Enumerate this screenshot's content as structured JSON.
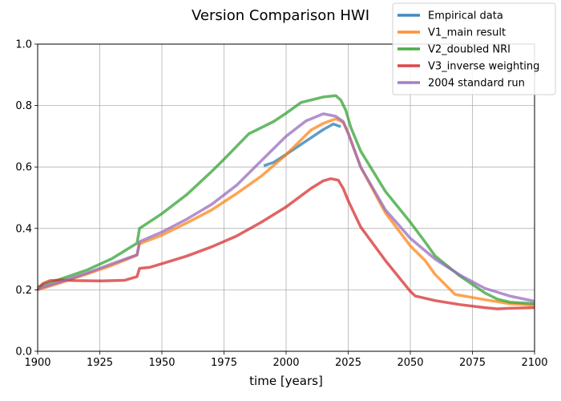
{
  "chart_data": {
    "type": "line",
    "title": "Version Comparison HWI",
    "xlabel": "time [years]",
    "ylabel": "",
    "xlim": [
      1900,
      2100
    ],
    "ylim": [
      0,
      1.0
    ],
    "xticks": [
      1900,
      1925,
      1950,
      1975,
      2000,
      2025,
      2050,
      2075,
      2100
    ],
    "yticks": [
      0.0,
      0.2,
      0.4,
      0.6,
      0.8,
      1.0
    ],
    "xtick_labels": [
      "1900",
      "1925",
      "1950",
      "1975",
      "2000",
      "2025",
      "2050",
      "2075",
      "2100"
    ],
    "ytick_labels": [
      "0.0",
      "0.2",
      "0.4",
      "0.6",
      "0.8",
      "1.0"
    ],
    "grid": true,
    "legend_position": "top-right",
    "series": [
      {
        "name": "Empirical data",
        "color": "#1f77b4",
        "points": [
          [
            1991,
            0.604
          ],
          [
            1995,
            0.615
          ],
          [
            2000,
            0.641
          ],
          [
            2005,
            0.668
          ],
          [
            2010,
            0.695
          ],
          [
            2015,
            0.722
          ],
          [
            2019,
            0.74
          ],
          [
            2022,
            0.731
          ]
        ]
      },
      {
        "name": "V1_main result",
        "color": "#ff7f0e",
        "points": [
          [
            1900,
            0.2
          ],
          [
            1910,
            0.225
          ],
          [
            1920,
            0.252
          ],
          [
            1930,
            0.28
          ],
          [
            1940,
            0.313
          ],
          [
            1941,
            0.35
          ],
          [
            1950,
            0.378
          ],
          [
            1960,
            0.418
          ],
          [
            1970,
            0.46
          ],
          [
            1980,
            0.513
          ],
          [
            1990,
            0.57
          ],
          [
            2000,
            0.64
          ],
          [
            2010,
            0.72
          ],
          [
            2015,
            0.742
          ],
          [
            2020,
            0.757
          ],
          [
            2023,
            0.745
          ],
          [
            2025,
            0.71
          ],
          [
            2030,
            0.6
          ],
          [
            2040,
            0.45
          ],
          [
            2050,
            0.343
          ],
          [
            2056,
            0.295
          ],
          [
            2060,
            0.25
          ],
          [
            2068,
            0.185
          ],
          [
            2080,
            0.168
          ],
          [
            2090,
            0.155
          ],
          [
            2100,
            0.15
          ]
        ]
      },
      {
        "name": "V2_doubled NRI",
        "color": "#2ca02c",
        "points": [
          [
            1900,
            0.21
          ],
          [
            1910,
            0.237
          ],
          [
            1920,
            0.265
          ],
          [
            1930,
            0.302
          ],
          [
            1940,
            0.352
          ],
          [
            1941,
            0.4
          ],
          [
            1950,
            0.448
          ],
          [
            1960,
            0.51
          ],
          [
            1970,
            0.585
          ],
          [
            1975,
            0.625
          ],
          [
            1985,
            0.708
          ],
          [
            1995,
            0.748
          ],
          [
            2000,
            0.775
          ],
          [
            2006,
            0.81
          ],
          [
            2015,
            0.828
          ],
          [
            2020,
            0.832
          ],
          [
            2022,
            0.818
          ],
          [
            2024,
            0.785
          ],
          [
            2026,
            0.73
          ],
          [
            2030,
            0.652
          ],
          [
            2040,
            0.52
          ],
          [
            2050,
            0.42
          ],
          [
            2056,
            0.355
          ],
          [
            2060,
            0.31
          ],
          [
            2070,
            0.245
          ],
          [
            2080,
            0.19
          ],
          [
            2085,
            0.17
          ],
          [
            2090,
            0.16
          ],
          [
            2100,
            0.155
          ]
        ]
      },
      {
        "name": "V3_inverse weighting",
        "color": "#d62728",
        "points": [
          [
            1900,
            0.2
          ],
          [
            1902,
            0.22
          ],
          [
            1905,
            0.23
          ],
          [
            1910,
            0.232
          ],
          [
            1915,
            0.23
          ],
          [
            1925,
            0.229
          ],
          [
            1935,
            0.231
          ],
          [
            1940,
            0.243
          ],
          [
            1941,
            0.27
          ],
          [
            1945,
            0.273
          ],
          [
            1950,
            0.285
          ],
          [
            1960,
            0.31
          ],
          [
            1970,
            0.34
          ],
          [
            1980,
            0.375
          ],
          [
            1990,
            0.42
          ],
          [
            2000,
            0.47
          ],
          [
            2010,
            0.53
          ],
          [
            2015,
            0.555
          ],
          [
            2018,
            0.562
          ],
          [
            2021,
            0.557
          ],
          [
            2023,
            0.53
          ],
          [
            2025,
            0.49
          ],
          [
            2030,
            0.405
          ],
          [
            2040,
            0.295
          ],
          [
            2045,
            0.245
          ],
          [
            2050,
            0.195
          ],
          [
            2052,
            0.18
          ],
          [
            2060,
            0.165
          ],
          [
            2070,
            0.152
          ],
          [
            2080,
            0.142
          ],
          [
            2085,
            0.138
          ],
          [
            2090,
            0.14
          ],
          [
            2100,
            0.142
          ]
        ]
      },
      {
        "name": "2004 standard run",
        "color": "#9467bd",
        "points": [
          [
            1900,
            0.203
          ],
          [
            1910,
            0.228
          ],
          [
            1920,
            0.255
          ],
          [
            1930,
            0.285
          ],
          [
            1940,
            0.314
          ],
          [
            1941,
            0.357
          ],
          [
            1950,
            0.388
          ],
          [
            1960,
            0.43
          ],
          [
            1970,
            0.478
          ],
          [
            1980,
            0.54
          ],
          [
            1990,
            0.62
          ],
          [
            2000,
            0.7
          ],
          [
            2008,
            0.75
          ],
          [
            2015,
            0.773
          ],
          [
            2020,
            0.765
          ],
          [
            2023,
            0.748
          ],
          [
            2025,
            0.71
          ],
          [
            2030,
            0.6
          ],
          [
            2040,
            0.46
          ],
          [
            2050,
            0.368
          ],
          [
            2060,
            0.3
          ],
          [
            2070,
            0.248
          ],
          [
            2080,
            0.205
          ],
          [
            2090,
            0.18
          ],
          [
            2100,
            0.163
          ]
        ]
      }
    ]
  }
}
